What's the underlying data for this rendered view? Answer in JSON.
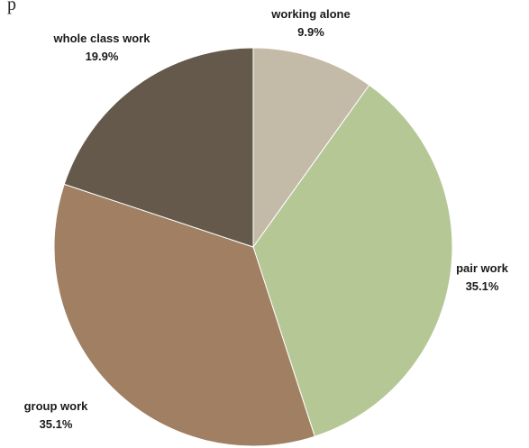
{
  "cropped_text": "p",
  "chart_data": {
    "type": "pie",
    "title": "",
    "slices": [
      {
        "label": "working alone",
        "value": 9.9,
        "value_label": "9.9%",
        "color": "#c3baa7"
      },
      {
        "label": "pair work",
        "value": 35.1,
        "value_label": "35.1%",
        "color": "#b6c796"
      },
      {
        "label": "group work",
        "value": 35.1,
        "value_label": "35.1%",
        "color": "#a07f62"
      },
      {
        "label": "whole class work",
        "value": 19.9,
        "value_label": "19.9%",
        "color": "#64594a"
      }
    ],
    "start_angle_deg": 0,
    "direction": "clockwise",
    "legend": "none"
  }
}
